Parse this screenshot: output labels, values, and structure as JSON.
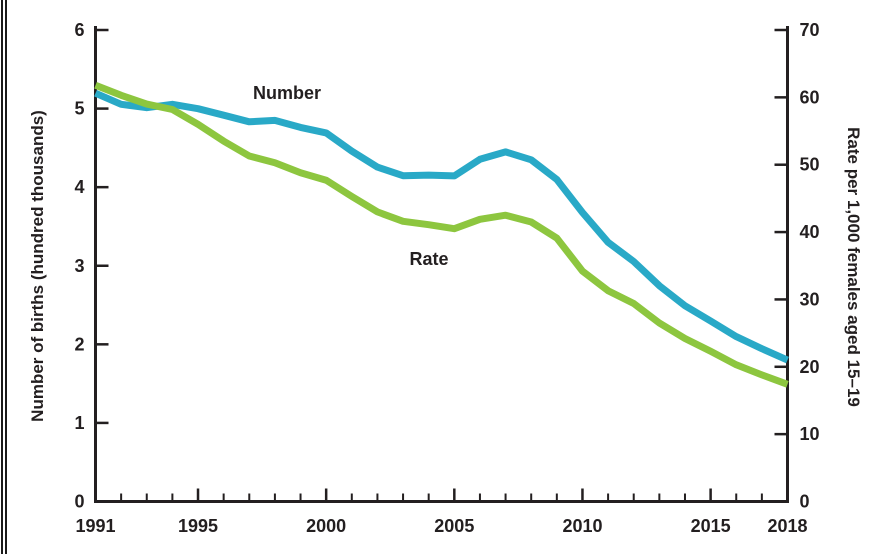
{
  "annotations": {
    "number_label": "Number",
    "rate_label": "Rate"
  },
  "colors": {
    "number_line": "#29a9c7",
    "rate_line": "#8dc63f",
    "axis": "#231f20",
    "text": "#231f20",
    "page_border": "#1a1a1a"
  },
  "chart_data": {
    "type": "line",
    "title": "",
    "grid": false,
    "legend_position": "inline-annotations",
    "x": [
      1991,
      1992,
      1993,
      1994,
      1995,
      1996,
      1997,
      1998,
      1999,
      2000,
      2001,
      2002,
      2003,
      2004,
      2005,
      2006,
      2007,
      2008,
      2009,
      2010,
      2011,
      2012,
      2013,
      2014,
      2015,
      2016,
      2017,
      2018
    ],
    "series": [
      {
        "name": "Number",
        "axis": "left",
        "color": "#29a9c7",
        "values": [
          5.196,
          5.054,
          5.011,
          5.055,
          4.999,
          4.916,
          4.832,
          4.849,
          4.76,
          4.69,
          4.459,
          4.255,
          4.146,
          4.153,
          4.144,
          4.354,
          4.449,
          4.348,
          4.098,
          3.677,
          3.298,
          3.054,
          2.746,
          2.491,
          2.297,
          2.098,
          1.944,
          1.799
        ]
      },
      {
        "name": "Rate",
        "axis": "right",
        "color": "#8dc63f",
        "values": [
          61.8,
          60.3,
          59.0,
          58.2,
          56.0,
          53.5,
          51.3,
          50.3,
          48.8,
          47.7,
          45.3,
          43.0,
          41.6,
          41.1,
          40.5,
          41.9,
          42.5,
          41.5,
          39.1,
          34.2,
          31.3,
          29.4,
          26.5,
          24.2,
          22.3,
          20.3,
          18.8,
          17.4
        ]
      }
    ],
    "left_axis": {
      "label": "Number of births (hundred thousands)",
      "range": [
        0,
        6
      ],
      "ticks": [
        0,
        1,
        2,
        3,
        4,
        5,
        6
      ]
    },
    "right_axis": {
      "label": "Rate per 1,000 females aged 15–19",
      "range": [
        0,
        70
      ],
      "ticks": [
        0,
        10,
        20,
        30,
        40,
        50,
        60,
        70
      ]
    },
    "x_axis": {
      "range": [
        1991,
        2018
      ],
      "minor_tick_every": 1,
      "major_ticks": [
        1995,
        2000,
        2005,
        2010,
        2015
      ],
      "tick_labels": [
        "1991",
        "1995",
        "2000",
        "2005",
        "2010",
        "2015",
        "2018"
      ]
    }
  }
}
